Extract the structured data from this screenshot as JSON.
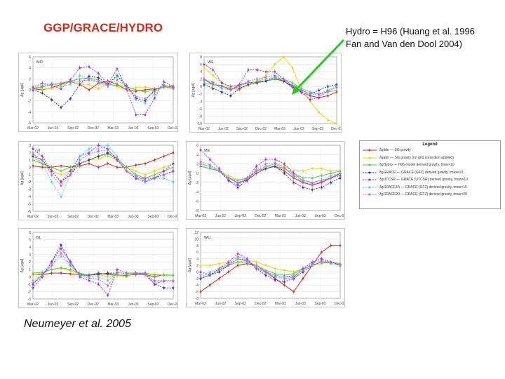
{
  "slide": {
    "title": "GGP/GRACE/HYDRO",
    "hydro_note": "Hydro = H96 (Huang et al. 1996\nFan and Van den Dool 2004)",
    "citation": "Neumeyer et al. 2005"
  },
  "colors": {
    "title": "#d42a1a",
    "arrow": "#22cc22",
    "series": [
      "#d42a1a",
      "#f0d000",
      "#44cc33",
      "#2a2aa0",
      "#8a2be2",
      "#33d6e0",
      "#d45ad4"
    ]
  },
  "chart_data": [
    {
      "type": "line",
      "station": "MO",
      "ylabel": "Δg [μgal]",
      "ylim": [
        -6,
        6
      ],
      "yticks": [
        "6",
        "4",
        "2",
        "0",
        "-2",
        "-4",
        "-6"
      ],
      "xticks": [
        "Mar-02",
        "Jun-02",
        "Sep-02",
        "Dec-02",
        "Mar-03",
        "Jun-03",
        "Sep-03",
        "Dec-03"
      ],
      "series": [
        {
          "values": [
            0.2,
            0.0,
            0.4,
            1.0,
            1.5,
            1.0,
            0.0,
            1.2,
            1.6,
            1.0,
            0.0,
            -0.3,
            0.0,
            0.2,
            0.5,
            0.3
          ]
        },
        {
          "values": [
            0.4,
            0.1,
            0.3,
            0.8,
            1.6,
            1.0,
            1.0,
            0.2,
            1.2,
            0.6,
            0.0,
            0.4,
            0.5,
            0.2,
            0.5,
            0.2
          ]
        },
        {
          "values": [
            0.3,
            0.5,
            1.0,
            1.2,
            1.6,
            2.0,
            2.2,
            1.8,
            1.0,
            0.8,
            0.6,
            0.0,
            -0.4,
            0.0,
            0.5,
            0.8
          ]
        },
        {
          "values": [
            0.0,
            -0.6,
            -1.8,
            -3.2,
            -1.6,
            1.0,
            2.5,
            2.2,
            1.0,
            2.6,
            0.8,
            -1.5,
            -2.0,
            0.0,
            0.8,
            0.5
          ]
        },
        {
          "values": [
            0.5,
            1.2,
            0.8,
            0.2,
            1.8,
            4.0,
            4.2,
            3.0,
            1.0,
            3.8,
            0.2,
            -4.5,
            -4.5,
            -1.5,
            1.5,
            0.5
          ]
        },
        {
          "values": [
            0.2,
            0.8,
            1.2,
            0.6,
            1.0,
            2.6,
            2.0,
            1.4,
            0.6,
            2.4,
            0.5,
            -1.8,
            -2.4,
            -0.8,
            1.0,
            0.2
          ]
        },
        {
          "values": [
            0.3,
            0.6,
            0.9,
            1.2,
            1.4,
            1.6,
            1.8,
            1.4,
            0.8,
            1.8,
            0.6,
            -1.2,
            -1.6,
            -0.4,
            0.8,
            0.4
          ]
        }
      ]
    },
    {
      "type": "line",
      "station": "WE",
      "ylabel": "Δg [μgal]",
      "ylim": [
        -10,
        8
      ],
      "yticks": [
        "8",
        "6",
        "4",
        "2",
        "0",
        "-2",
        "-4",
        "-6",
        "-8",
        "-10"
      ],
      "xticks": [
        "Mar-02",
        "Jun-02",
        "Sep-02",
        "Dec-02",
        "Mar-03",
        "Jun-03",
        "Sep-03",
        "Dec-03"
      ],
      "series": [
        {
          "values": [
            2.0,
            0.5,
            0.2,
            -1.0,
            0.5,
            1.0,
            1.2,
            1.5,
            2.0,
            1.5,
            -0.2,
            -1.5,
            -2.5,
            -3.0,
            -2.5,
            -1.5
          ]
        },
        {
          "values": [
            5.0,
            3.0,
            1.0,
            -0.5,
            -1.0,
            0.5,
            1.5,
            3.0,
            6.0,
            8.0,
            5.0,
            -1.0,
            -4.0,
            -7.0,
            -9.0,
            -10.0
          ]
        },
        {
          "values": [
            1.0,
            0.5,
            0.0,
            -0.5,
            -0.5,
            0.5,
            1.0,
            1.5,
            2.0,
            2.0,
            1.0,
            -0.5,
            -1.5,
            -2.0,
            -1.5,
            -1.0
          ]
        },
        {
          "values": [
            0.5,
            -0.5,
            -1.5,
            -2.5,
            -0.5,
            0.5,
            1.0,
            1.5,
            2.5,
            1.5,
            0.0,
            -1.0,
            -2.0,
            -1.0,
            0.0,
            0.5
          ]
        },
        {
          "values": [
            6.0,
            4.5,
            1.0,
            0.0,
            0.5,
            4.5,
            4.5,
            4.0,
            4.0,
            2.0,
            0.0,
            -1.5,
            -3.5,
            -3.0,
            -1.0,
            0.0
          ]
        },
        {
          "values": [
            1.5,
            1.0,
            -0.5,
            -1.0,
            0.0,
            1.0,
            1.5,
            2.0,
            2.5,
            2.0,
            0.5,
            -0.5,
            -1.5,
            -2.0,
            -1.0,
            0.0
          ]
        },
        {
          "values": [
            1.8,
            1.2,
            0.0,
            -0.8,
            0.0,
            1.5,
            2.0,
            2.5,
            3.0,
            2.0,
            0.2,
            -1.0,
            -2.0,
            -2.2,
            -1.2,
            -0.2
          ]
        }
      ]
    },
    {
      "type": "line",
      "station": "VI",
      "ylabel": "Δg [μgal]",
      "ylim": [
        -6,
        3
      ],
      "yticks": [
        "3",
        "2",
        "1",
        "0",
        "-1",
        "-2",
        "-3",
        "-4",
        "-5",
        "-6"
      ],
      "xticks": [
        "Mar-02",
        "Jun-02",
        "Sep-02",
        "Dec-02",
        "Mar-03",
        "Jun-03",
        "Sep-03",
        "Dec-03"
      ],
      "series": [
        {
          "values": [
            0.2,
            0.0,
            0.0,
            0.2,
            0.0,
            0.2,
            0.5,
            0.0,
            0.5,
            0.0,
            0.0,
            0.3,
            0.5,
            1.0,
            1.5,
            2.0
          ]
        },
        {
          "values": [
            1.5,
            0.5,
            -0.5,
            -1.0,
            -0.5,
            0.5,
            1.0,
            1.2,
            1.5,
            1.0,
            0.0,
            -0.5,
            -1.0,
            -0.5,
            0.0,
            0.5
          ]
        },
        {
          "values": [
            1.0,
            0.5,
            0.0,
            -0.5,
            0.0,
            0.5,
            1.0,
            1.5,
            1.8,
            1.2,
            0.0,
            -1.0,
            -1.5,
            -1.0,
            -0.5,
            0.0
          ]
        },
        {
          "values": [
            1.5,
            1.0,
            -0.5,
            -2.0,
            -1.0,
            0.5,
            1.0,
            1.5,
            2.0,
            1.0,
            -0.5,
            -1.5,
            -2.0,
            -1.5,
            -1.0,
            -0.5
          ]
        },
        {
          "values": [
            2.5,
            1.5,
            -0.5,
            -2.0,
            -0.5,
            1.5,
            2.0,
            3.0,
            2.5,
            1.0,
            -0.5,
            -1.5,
            -1.5,
            -1.5,
            -0.5,
            0.5
          ]
        },
        {
          "values": [
            2.0,
            0.5,
            -2.0,
            -4.0,
            -1.0,
            1.5,
            2.5,
            2.5,
            3.0,
            1.5,
            -0.5,
            -1.0,
            -2.0,
            -1.5,
            -1.5,
            -2.0
          ]
        },
        {
          "values": [
            1.8,
            1.0,
            -1.0,
            -2.5,
            -1.0,
            1.0,
            1.8,
            2.2,
            2.4,
            1.2,
            -0.5,
            -1.2,
            -1.8,
            -1.4,
            -1.0,
            -0.6
          ]
        }
      ]
    },
    {
      "type": "line",
      "station": "ME",
      "ylabel": "Δg [μgal]",
      "ylim": [
        -8,
        6
      ],
      "yticks": [
        "6",
        "4",
        "2",
        "0",
        "-2",
        "-4",
        "-6",
        "-8"
      ],
      "xticks": [
        "Mar-02",
        "Jun-02",
        "Sep-02",
        "Dec-02",
        "Mar-03",
        "Jun-03",
        "Sep-03",
        "Dec-03"
      ],
      "series": [
        {
          "values": [
            1.5,
            1.0,
            0.5,
            -1.0,
            -2.0,
            -1.5,
            0.0,
            1.0,
            1.5,
            0.5,
            -1.0,
            -2.0,
            -2.5,
            -2.0,
            -1.0,
            0.0
          ]
        },
        {
          "values": [
            2.0,
            1.5,
            0.5,
            -0.5,
            -1.5,
            -1.0,
            0.5,
            1.5,
            2.0,
            1.5,
            0.5,
            0.5,
            1.0,
            1.0,
            0.5,
            0.5
          ]
        },
        {
          "values": [
            1.5,
            1.0,
            0.5,
            -1.0,
            -1.5,
            -1.0,
            0.5,
            1.5,
            1.5,
            1.0,
            0.0,
            -1.0,
            -1.0,
            -0.5,
            0.0,
            0.5
          ]
        },
        {
          "values": [
            2.0,
            1.5,
            0.5,
            -1.5,
            -3.0,
            -1.5,
            0.5,
            1.0,
            1.5,
            0.0,
            -2.0,
            -3.0,
            -3.5,
            -3.0,
            -2.0,
            -1.0
          ]
        },
        {
          "values": [
            5.0,
            3.0,
            1.0,
            -1.5,
            -2.5,
            -1.0,
            1.5,
            3.0,
            3.0,
            2.0,
            0.0,
            -1.5,
            -2.0,
            -1.5,
            -1.0,
            -0.5
          ]
        },
        {
          "values": [
            2.0,
            1.5,
            0.5,
            -1.0,
            -2.0,
            -1.0,
            0.5,
            1.5,
            2.0,
            1.0,
            -0.5,
            -1.5,
            -2.0,
            -1.5,
            -0.5,
            0.0
          ]
        },
        {
          "values": [
            2.5,
            1.8,
            0.6,
            -1.0,
            -2.2,
            -1.2,
            0.8,
            2.0,
            2.2,
            1.2,
            -0.6,
            -1.8,
            -2.2,
            -1.8,
            -1.0,
            -0.2
          ]
        }
      ]
    },
    {
      "type": "line",
      "station": "BL",
      "ylabel": "Δg [μgal]",
      "ylim": [
        -3,
        6
      ],
      "yticks": [
        "6",
        "5",
        "4",
        "3",
        "2",
        "1",
        "0",
        "-1",
        "-2",
        "-3"
      ],
      "xticks": [
        "Mar-02",
        "Jun-02",
        "Sep-02",
        "Dec-02",
        "Mar-03",
        "Jun-03",
        "Sep-03",
        "Dec-03"
      ],
      "series": [
        {
          "values": [
            0.3,
            0.3,
            0.5,
            0.5,
            0.4,
            0.3,
            0.2,
            0.5,
            0.3,
            0.2,
            0.2,
            0.3,
            0.3,
            0.0,
            0.3,
            0.2
          ]
        },
        {
          "values": [
            0.2,
            0.5,
            1.0,
            1.2,
            0.8,
            0.4,
            0.2,
            0.3,
            0.0,
            0.2,
            0.0,
            0.5,
            0.4,
            0.2,
            0.3,
            0.2
          ]
        },
        {
          "values": [
            0.5,
            0.6,
            1.0,
            1.2,
            1.0,
            0.5,
            0.2,
            0.3,
            0.5,
            0.3,
            0.1,
            0.5,
            0.5,
            0.3,
            0.2,
            0.2
          ]
        },
        {
          "values": [
            -1.0,
            0.2,
            2.0,
            4.3,
            2.0,
            0.2,
            0.2,
            0.3,
            0.5,
            0.5,
            0.5,
            0.5,
            0.3,
            -1.0,
            -1.5,
            -1.5
          ]
        },
        {
          "values": [
            -1.5,
            0.0,
            2.0,
            3.8,
            2.0,
            0.0,
            -0.5,
            -1.0,
            -2.5,
            1.0,
            0.5,
            0.5,
            0.5,
            -1.0,
            -0.5,
            -0.5
          ]
        },
        {
          "values": [
            -0.5,
            0.2,
            1.5,
            2.8,
            1.5,
            0.3,
            0.0,
            0.0,
            -0.5,
            0.5,
            0.5,
            0.5,
            0.3,
            -0.5,
            -0.5,
            -0.5
          ]
        },
        {
          "values": [
            -0.8,
            0.2,
            1.6,
            3.2,
            1.6,
            0.2,
            -0.2,
            -0.3,
            -1.2,
            0.6,
            0.4,
            0.5,
            0.4,
            -0.6,
            -0.6,
            -0.6
          ]
        }
      ]
    },
    {
      "type": "line",
      "station": "WU",
      "ylabel": "Δg [μgal]",
      "ylim": [
        -8,
        12
      ],
      "yticks": [
        "12",
        "10",
        "8",
        "6",
        "4",
        "2",
        "0",
        "-2",
        "-4",
        "-6",
        "-8"
      ],
      "xticks": [
        "Mar-02",
        "Jun-02",
        "Sep-02",
        "Dec-02",
        "Mar-03",
        "Jun-03",
        "Sep-03",
        "Dec-03"
      ],
      "series": [
        {
          "values": [
            -6.0,
            -4.0,
            -2.0,
            0.0,
            2.0,
            2.5,
            2.0,
            0.0,
            -2.0,
            -4.0,
            -6.0,
            -2.0,
            2.0,
            6.0,
            8.0,
            8.0
          ]
        },
        {
          "values": [
            2.0,
            2.0,
            2.5,
            3.0,
            3.0,
            3.5,
            3.0,
            2.0,
            1.0,
            0.5,
            0.0,
            1.0,
            2.0,
            2.5,
            3.0,
            2.5
          ]
        },
        {
          "values": [
            -2.0,
            -1.0,
            0.5,
            2.0,
            3.0,
            3.0,
            2.0,
            0.5,
            -0.5,
            -1.0,
            -0.5,
            1.0,
            2.0,
            3.0,
            3.0,
            2.5
          ]
        },
        {
          "values": [
            -2.0,
            -1.0,
            0.0,
            2.0,
            4.0,
            3.5,
            1.0,
            -1.0,
            -2.5,
            -3.0,
            -2.0,
            0.0,
            2.0,
            3.0,
            3.0,
            2.0
          ]
        },
        {
          "values": [
            0.0,
            -1.0,
            1.0,
            3.0,
            5.5,
            4.0,
            1.0,
            0.0,
            -1.0,
            -1.5,
            -1.5,
            1.0,
            3.0,
            4.0,
            3.0,
            2.0
          ]
        },
        {
          "values": [
            -1.0,
            0.0,
            1.0,
            2.0,
            4.0,
            3.0,
            2.0,
            0.0,
            -1.0,
            -1.5,
            -1.0,
            0.5,
            2.0,
            3.0,
            2.5,
            2.0
          ]
        },
        {
          "values": [
            -1.5,
            -0.5,
            0.8,
            2.4,
            4.6,
            3.6,
            1.4,
            -0.2,
            -1.4,
            -2.0,
            -1.6,
            0.6,
            2.4,
            3.4,
            3.0,
            2.2
          ]
        }
      ]
    }
  ],
  "legend": {
    "title": "Legend",
    "entries": [
      {
        "label": "δgtide — SG gravity"
      },
      {
        "label": "δgatm — SG gravity (no grid correction applied)"
      },
      {
        "label": "δgHydro — H96-model derived gravity, tmax=10"
      },
      {
        "label": "δgGRACE — GRACE (GFZ) derived gravity, tmax=10"
      },
      {
        "label": "δgUTCSR — GRACE (UTCSR) derived gravity, tmax=10"
      },
      {
        "label": "δgGRACE15 — GRACE (GFZ) derived gravity, tmax=15"
      },
      {
        "label": "δgGRACE20 — GRACE (GFZ) derived gravity, tmax=20"
      }
    ]
  }
}
